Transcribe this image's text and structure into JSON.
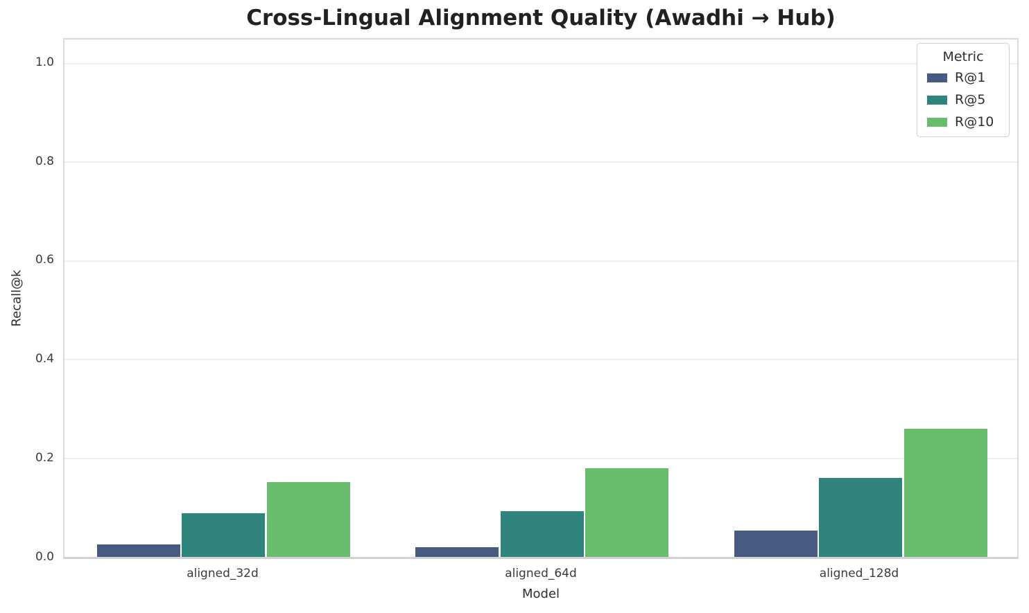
{
  "chart_data": {
    "type": "bar",
    "title": "Cross-Lingual Alignment Quality (Awadhi → Hub)",
    "xlabel": "Model",
    "ylabel": "Recall@k",
    "categories": [
      "aligned_32d",
      "aligned_64d",
      "aligned_128d"
    ],
    "series": [
      {
        "name": "R@1",
        "color": "#475a7f",
        "values": [
          0.026,
          0.021,
          0.054
        ]
      },
      {
        "name": "R@5",
        "color": "#2e837d",
        "values": [
          0.089,
          0.094,
          0.161
        ]
      },
      {
        "name": "R@10",
        "color": "#67bd6b",
        "values": [
          0.152,
          0.181,
          0.26
        ]
      }
    ],
    "legend": {
      "title": "Metric",
      "position": "upper right"
    },
    "ylim": [
      0,
      1.05
    ],
    "yticks": [
      "0.0",
      "0.2",
      "0.4",
      "0.6",
      "0.8",
      "1.0"
    ],
    "ytick_values": [
      0.0,
      0.2,
      0.4,
      0.6,
      0.8,
      1.0
    ],
    "grid": true,
    "group_width_fraction": 0.8
  }
}
